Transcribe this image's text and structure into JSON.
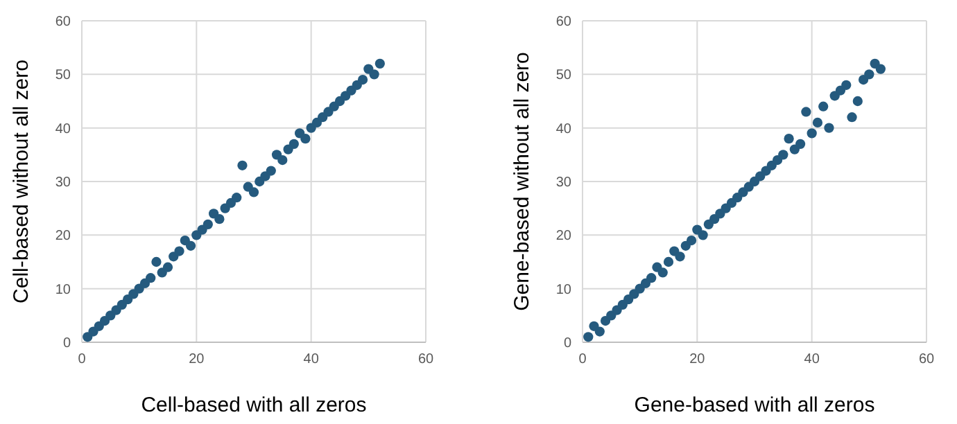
{
  "chart_data": [
    {
      "type": "scatter",
      "xlabel": "Cell-based with all zeros",
      "ylabel": "Cell-based without all zero",
      "xlim": [
        0,
        60
      ],
      "ylim": [
        0,
        60
      ],
      "xticks": [
        0,
        20,
        40,
        60
      ],
      "yticks": [
        0,
        10,
        20,
        30,
        40,
        50,
        60
      ],
      "grid": true,
      "marker": "circle",
      "series": [
        {
          "color": "#255a7e",
          "x": [
            1,
            2,
            3,
            4,
            5,
            6,
            7,
            8,
            9,
            10,
            11,
            12,
            13,
            14,
            15,
            16,
            17,
            18,
            19,
            20,
            21,
            22,
            23,
            24,
            25,
            26,
            27,
            28,
            29,
            30,
            31,
            32,
            33,
            34,
            35,
            36,
            37,
            38,
            39,
            40,
            41,
            42,
            43,
            44,
            45,
            46,
            47,
            48,
            49,
            50,
            51,
            52
          ],
          "values": [
            1,
            2,
            3,
            4,
            5,
            6,
            7,
            8,
            9,
            10,
            11,
            12,
            15,
            13,
            14,
            16,
            17,
            19,
            18,
            20,
            21,
            22,
            24,
            23,
            25,
            26,
            27,
            33,
            29,
            28,
            30,
            31,
            32,
            35,
            34,
            36,
            37,
            39,
            38,
            40,
            41,
            42,
            43,
            44,
            45,
            46,
            47,
            48,
            49,
            51,
            50,
            52
          ]
        }
      ]
    },
    {
      "type": "scatter",
      "xlabel": "Gene-based with all zeros",
      "ylabel": "Gene-based without all zero",
      "xlim": [
        0,
        60
      ],
      "ylim": [
        0,
        60
      ],
      "xticks": [
        0,
        20,
        40,
        60
      ],
      "yticks": [
        0,
        10,
        20,
        30,
        40,
        50,
        60
      ],
      "grid": true,
      "marker": "circle",
      "series": [
        {
          "color": "#255a7e",
          "x": [
            1,
            2,
            3,
            4,
            5,
            6,
            7,
            8,
            9,
            10,
            11,
            12,
            13,
            14,
            15,
            16,
            17,
            18,
            19,
            20,
            21,
            22,
            23,
            24,
            25,
            26,
            27,
            28,
            29,
            30,
            31,
            32,
            33,
            34,
            35,
            36,
            37,
            38,
            39,
            40,
            41,
            42,
            43,
            44,
            45,
            46,
            47,
            48,
            49,
            50,
            51,
            52
          ],
          "values": [
            1,
            3,
            2,
            4,
            5,
            6,
            7,
            8,
            9,
            10,
            11,
            12,
            14,
            13,
            15,
            17,
            16,
            18,
            19,
            21,
            20,
            22,
            23,
            24,
            25,
            26,
            27,
            28,
            29,
            30,
            31,
            32,
            33,
            34,
            35,
            38,
            36,
            37,
            43,
            39,
            41,
            44,
            40,
            46,
            47,
            48,
            42,
            45,
            49,
            50,
            52,
            51
          ]
        }
      ]
    }
  ]
}
